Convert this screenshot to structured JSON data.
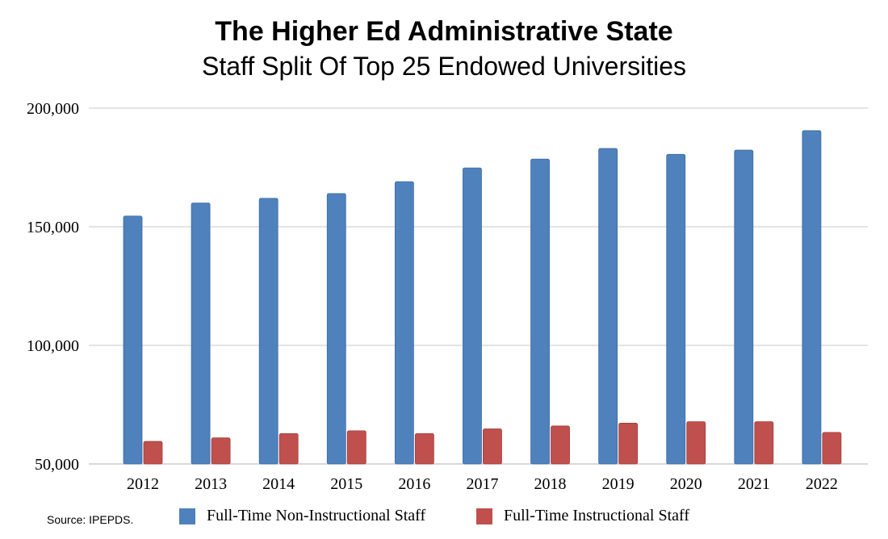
{
  "title": "The Higher Ed Administrative State",
  "subtitle": "Staff Split Of Top 25 Endowed Universities",
  "source": "Source: IPEPDS.",
  "colors": {
    "non_instructional": "#4f81bd",
    "instructional": "#c0504d",
    "grid": "#c8c8c8"
  },
  "chart_data": {
    "type": "bar",
    "title": "The Higher Ed Administrative State",
    "subtitle": "Staff Split Of Top 25 Endowed Universities",
    "xlabel": "",
    "ylabel": "",
    "categories": [
      "2012",
      "2013",
      "2014",
      "2015",
      "2016",
      "2017",
      "2018",
      "2019",
      "2020",
      "2021",
      "2022"
    ],
    "series": [
      {
        "name": "Full-Time Non-Instructional Staff",
        "values": [
          154500,
          160000,
          162000,
          164000,
          169000,
          174800,
          178500,
          183000,
          180500,
          182300,
          190500
        ]
      },
      {
        "name": "Full-Time Instructional Staff",
        "values": [
          59500,
          61000,
          62800,
          64000,
          62800,
          64800,
          66000,
          67200,
          67800,
          67800,
          63300
        ]
      }
    ],
    "ylim": [
      50000,
      200000
    ],
    "yticks": [
      50000,
      100000,
      150000,
      200000
    ],
    "ytick_labels": [
      "50,000",
      "100,000",
      "150,000",
      "200,000"
    ],
    "grid": true,
    "legend_position": "bottom"
  }
}
